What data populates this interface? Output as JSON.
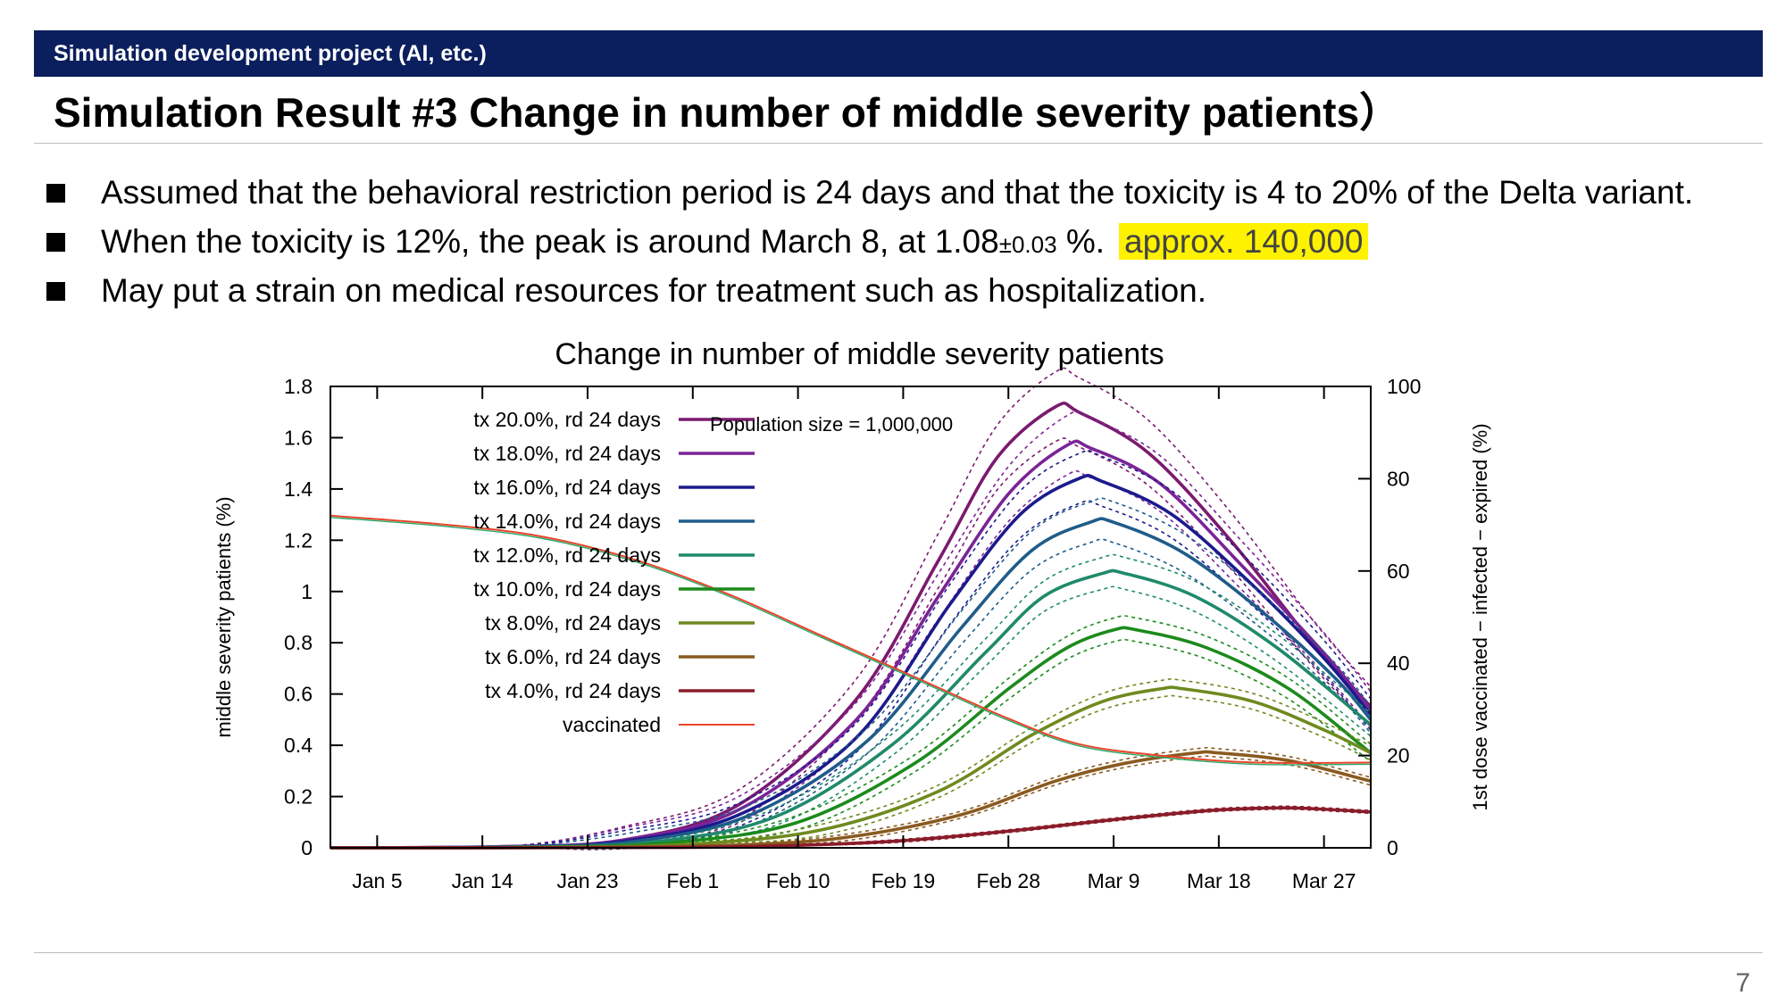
{
  "slide": {
    "header": "Simulation development project (AI, etc.)",
    "title": "Simulation Result #3 Change in number of middle severity patients）",
    "bullets": [
      "Assumed that the behavioral restriction period is 24 days and that the toxicity is 4 to 20% of the Delta variant.",
      "May put a strain on medical resources for treatment such as hospitalization."
    ],
    "bullet2": {
      "text_a": "When the toxicity is 12%, the peak is around March 8, at 1.08",
      "text_small": "±0.03",
      "text_b": " %.",
      "highlight": "approx. 140,000"
    },
    "page_number": "7",
    "colors": {
      "header_bg": "#0b1f5e",
      "highlight": "#fff200"
    }
  },
  "chart_data": {
    "type": "line",
    "title": "Change in number of middle severity patients",
    "xlabel": "",
    "ylabel": "middle severity patients (%)",
    "y2label": "1st dose vaccinated − infected − expired (%)",
    "ylim": [
      0,
      1.8
    ],
    "y2lim": [
      0,
      100
    ],
    "yticks": [
      "0",
      "0.2",
      "0.4",
      "0.6",
      "0.8",
      "1",
      "1.2",
      "1.4",
      "1.6",
      "1.8"
    ],
    "y2ticks": [
      "0",
      "20",
      "40",
      "60",
      "80",
      "100"
    ],
    "x_dates": [
      "2022-01-01",
      "2022-03-31"
    ],
    "xticks": [
      {
        "label": "Jan 5",
        "date": "2022-01-05"
      },
      {
        "label": "Jan 14",
        "date": "2022-01-14"
      },
      {
        "label": "Jan 23",
        "date": "2022-01-23"
      },
      {
        "label": "Feb 1",
        "date": "2022-02-01"
      },
      {
        "label": "Feb 10",
        "date": "2022-02-10"
      },
      {
        "label": "Feb 19",
        "date": "2022-02-19"
      },
      {
        "label": "Feb 28",
        "date": "2022-02-28"
      },
      {
        "label": "Mar 9",
        "date": "2022-03-09"
      },
      {
        "label": "Mar 18",
        "date": "2022-03-18"
      },
      {
        "label": "Mar 27",
        "date": "2022-03-27"
      }
    ],
    "annotation": "Population size = 1,000,000",
    "grid": false,
    "legend_position": "top-left",
    "series": [
      {
        "name": "tx 20.0%, rd 24 days",
        "color": "#7b1a6e",
        "band": 0.05,
        "points": [
          [
            "2022-01-01",
            0.0
          ],
          [
            "2022-01-16",
            0.005
          ],
          [
            "2022-01-26",
            0.03
          ],
          [
            "2022-02-05",
            0.17
          ],
          [
            "2022-02-15",
            0.58
          ],
          [
            "2022-02-22",
            1.12
          ],
          [
            "2022-02-27",
            1.52
          ],
          [
            "2022-03-04",
            1.72
          ],
          [
            "2022-03-06",
            1.7
          ],
          [
            "2022-03-12",
            1.54
          ],
          [
            "2022-03-19",
            1.2
          ],
          [
            "2022-03-26",
            0.8
          ],
          [
            "2022-03-31",
            0.55
          ]
        ]
      },
      {
        "name": "tx 18.0%, rd 24 days",
        "color": "#7b2396",
        "band": 0.045,
        "points": [
          [
            "2022-01-01",
            0.0
          ],
          [
            "2022-01-16",
            0.005
          ],
          [
            "2022-01-26",
            0.03
          ],
          [
            "2022-02-05",
            0.15
          ],
          [
            "2022-02-15",
            0.5
          ],
          [
            "2022-02-22",
            0.98
          ],
          [
            "2022-02-28",
            1.38
          ],
          [
            "2022-03-05",
            1.57
          ],
          [
            "2022-03-07",
            1.56
          ],
          [
            "2022-03-13",
            1.42
          ],
          [
            "2022-03-20",
            1.1
          ],
          [
            "2022-03-27",
            0.76
          ],
          [
            "2022-03-31",
            0.54
          ]
        ]
      },
      {
        "name": "tx 16.0%, rd 24 days",
        "color": "#1c1a8c",
        "band": 0.04,
        "points": [
          [
            "2022-01-01",
            0.0
          ],
          [
            "2022-01-16",
            0.004
          ],
          [
            "2022-01-26",
            0.025
          ],
          [
            "2022-02-05",
            0.13
          ],
          [
            "2022-02-15",
            0.43
          ],
          [
            "2022-02-23",
            0.95
          ],
          [
            "2022-03-01",
            1.3
          ],
          [
            "2022-03-06",
            1.44
          ],
          [
            "2022-03-08",
            1.43
          ],
          [
            "2022-03-14",
            1.3
          ],
          [
            "2022-03-21",
            1.02
          ],
          [
            "2022-03-27",
            0.74
          ],
          [
            "2022-03-31",
            0.52
          ]
        ]
      },
      {
        "name": "tx 14.0%, rd 24 days",
        "color": "#1f5c8a",
        "band": 0.035,
        "points": [
          [
            "2022-01-01",
            0.0
          ],
          [
            "2022-01-16",
            0.003
          ],
          [
            "2022-01-27",
            0.025
          ],
          [
            "2022-02-06",
            0.13
          ],
          [
            "2022-02-16",
            0.42
          ],
          [
            "2022-02-24",
            0.86
          ],
          [
            "2022-03-02",
            1.16
          ],
          [
            "2022-03-07",
            1.27
          ],
          [
            "2022-03-09",
            1.27
          ],
          [
            "2022-03-15",
            1.15
          ],
          [
            "2022-03-22",
            0.91
          ],
          [
            "2022-03-28",
            0.66
          ],
          [
            "2022-03-31",
            0.5
          ]
        ]
      },
      {
        "name": "tx 12.0%, rd 24 days",
        "color": "#1f8a6a",
        "band": 0.03,
        "points": [
          [
            "2022-01-01",
            0.0
          ],
          [
            "2022-01-17",
            0.003
          ],
          [
            "2022-01-28",
            0.02
          ],
          [
            "2022-02-08",
            0.12
          ],
          [
            "2022-02-18",
            0.4
          ],
          [
            "2022-02-26",
            0.76
          ],
          [
            "2022-03-03",
            0.98
          ],
          [
            "2022-03-08",
            1.07
          ],
          [
            "2022-03-10",
            1.07
          ],
          [
            "2022-03-16",
            0.98
          ],
          [
            "2022-03-23",
            0.78
          ],
          [
            "2022-03-31",
            0.48
          ]
        ]
      },
      {
        "name": "tx 10.0%, rd 24 days",
        "color": "#1c8a1c",
        "band": 0.025,
        "points": [
          [
            "2022-01-01",
            0.0
          ],
          [
            "2022-01-18",
            0.002
          ],
          [
            "2022-01-30",
            0.02
          ],
          [
            "2022-02-10",
            0.1
          ],
          [
            "2022-02-20",
            0.33
          ],
          [
            "2022-02-28",
            0.62
          ],
          [
            "2022-03-05",
            0.78
          ],
          [
            "2022-03-09",
            0.85
          ],
          [
            "2022-03-11",
            0.85
          ],
          [
            "2022-03-17",
            0.78
          ],
          [
            "2022-03-24",
            0.62
          ],
          [
            "2022-03-31",
            0.37
          ]
        ]
      },
      {
        "name": "tx 8.0%, rd 24 days",
        "color": "#6e8a1f",
        "band": 0.02,
        "points": [
          [
            "2022-01-01",
            0.0
          ],
          [
            "2022-01-20",
            0.002
          ],
          [
            "2022-02-01",
            0.015
          ],
          [
            "2022-02-12",
            0.07
          ],
          [
            "2022-02-22",
            0.22
          ],
          [
            "2022-03-02",
            0.44
          ],
          [
            "2022-03-08",
            0.57
          ],
          [
            "2022-03-13",
            0.62
          ],
          [
            "2022-03-15",
            0.62
          ],
          [
            "2022-03-21",
            0.57
          ],
          [
            "2022-03-27",
            0.46
          ],
          [
            "2022-03-31",
            0.37
          ]
        ]
      },
      {
        "name": "tx 6.0%, rd 24 days",
        "color": "#8a5a1f",
        "band": 0.012,
        "points": [
          [
            "2022-01-01",
            0.0
          ],
          [
            "2022-01-22",
            0.001
          ],
          [
            "2022-02-04",
            0.01
          ],
          [
            "2022-02-14",
            0.04
          ],
          [
            "2022-02-24",
            0.13
          ],
          [
            "2022-03-04",
            0.26
          ],
          [
            "2022-03-10",
            0.33
          ],
          [
            "2022-03-16",
            0.37
          ],
          [
            "2022-03-18",
            0.37
          ],
          [
            "2022-03-24",
            0.34
          ],
          [
            "2022-03-31",
            0.26
          ]
        ]
      },
      {
        "name": "tx 4.0%, rd 24 days",
        "color": "#8a1c2a",
        "band": 0.005,
        "points": [
          [
            "2022-01-01",
            0.0
          ],
          [
            "2022-01-26",
            0.001
          ],
          [
            "2022-02-06",
            0.005
          ],
          [
            "2022-02-18",
            0.025
          ],
          [
            "2022-02-28",
            0.065
          ],
          [
            "2022-03-09",
            0.11
          ],
          [
            "2022-03-17",
            0.145
          ],
          [
            "2022-03-22",
            0.155
          ],
          [
            "2022-03-25",
            0.155
          ],
          [
            "2022-03-31",
            0.14
          ]
        ]
      }
    ],
    "vaccinated": {
      "name": "vaccinated",
      "color": "#e8442a",
      "axis": "right",
      "points": [
        [
          "2022-01-01",
          72
        ],
        [
          "2022-01-11",
          70
        ],
        [
          "2022-01-19",
          67.5
        ],
        [
          "2022-01-27",
          62.5
        ],
        [
          "2022-02-04",
          55
        ],
        [
          "2022-02-12",
          46
        ],
        [
          "2022-02-20",
          37
        ],
        [
          "2022-02-28",
          28
        ],
        [
          "2022-03-06",
          22.5
        ],
        [
          "2022-03-13",
          20
        ],
        [
          "2022-03-21",
          18.5
        ],
        [
          "2022-03-31",
          18.5
        ]
      ]
    }
  }
}
